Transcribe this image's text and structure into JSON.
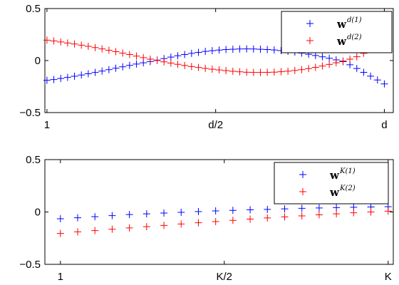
{
  "chart_data": [
    {
      "type": "scatter",
      "title": "",
      "xlabel": "",
      "ylabel": "",
      "marker": "+",
      "grid": false,
      "legend_position": "top-right",
      "x_range": [
        1,
        50
      ],
      "ylim": [
        -0.5,
        0.5
      ],
      "x_tick_values": [
        1,
        25.5,
        50
      ],
      "x_tick_labels": [
        "1",
        "d/2",
        "d"
      ],
      "y_tick_values": [
        0.5,
        0,
        -0.5
      ],
      "y_tick_labels": [
        "0.5",
        "0",
        "−0.5"
      ],
      "series": [
        {
          "name": "w",
          "name_superscript": "d(1)",
          "color": "#0000ff",
          "x": [
            1,
            2,
            3,
            4,
            5,
            6,
            7,
            8,
            9,
            10,
            11,
            12,
            13,
            14,
            15,
            16,
            17,
            18,
            19,
            20,
            21,
            22,
            23,
            24,
            25,
            26,
            27,
            28,
            29,
            30,
            31,
            32,
            33,
            34,
            35,
            36,
            37,
            38,
            39,
            40,
            41,
            42,
            43,
            44,
            45,
            46,
            47,
            48,
            49,
            50
          ],
          "y": [
            -0.19,
            -0.182,
            -0.172,
            -0.162,
            -0.151,
            -0.139,
            -0.127,
            -0.114,
            -0.101,
            -0.087,
            -0.074,
            -0.06,
            -0.046,
            -0.033,
            -0.021,
            -0.009,
            0.004,
            0.019,
            0.033,
            0.046,
            0.058,
            0.069,
            0.079,
            0.088,
            0.095,
            0.101,
            0.106,
            0.109,
            0.111,
            0.112,
            0.111,
            0.109,
            0.106,
            0.102,
            0.096,
            0.089,
            0.081,
            0.072,
            0.061,
            0.049,
            0.036,
            0.022,
            0.007,
            -0.01,
            -0.04,
            -0.076,
            -0.113,
            -0.15,
            -0.187,
            -0.224
          ]
        },
        {
          "name": "w",
          "name_superscript": "d(2)",
          "color": "#ff0000",
          "x": [
            1,
            2,
            3,
            4,
            5,
            6,
            7,
            8,
            9,
            10,
            11,
            12,
            13,
            14,
            15,
            16,
            17,
            18,
            19,
            20,
            21,
            22,
            23,
            24,
            25,
            26,
            27,
            28,
            29,
            30,
            31,
            32,
            33,
            34,
            35,
            36,
            37,
            38,
            39,
            40,
            41,
            42,
            43,
            44,
            45,
            46,
            47,
            48,
            49,
            50
          ],
          "y": [
            0.196,
            0.188,
            0.179,
            0.169,
            0.159,
            0.148,
            0.137,
            0.125,
            0.112,
            0.099,
            0.086,
            0.072,
            0.058,
            0.043,
            0.028,
            0.014,
            0.001,
            -0.012,
            -0.024,
            -0.036,
            -0.047,
            -0.057,
            -0.066,
            -0.075,
            -0.083,
            -0.09,
            -0.097,
            -0.103,
            -0.108,
            -0.112,
            -0.114,
            -0.114,
            -0.113,
            -0.111,
            -0.107,
            -0.102,
            -0.095,
            -0.087,
            -0.077,
            -0.065,
            -0.052,
            -0.037,
            -0.021,
            -0.004,
            0.014,
            0.037,
            0.07,
            0.108,
            0.16,
            0.2
          ]
        }
      ]
    },
    {
      "type": "scatter",
      "title": "",
      "xlabel": "",
      "ylabel": "",
      "marker": "+",
      "grid": false,
      "legend_position": "top-right",
      "x_range": [
        1,
        20
      ],
      "ylim": [
        -0.5,
        0.5
      ],
      "x_tick_values": [
        1,
        10.5,
        20
      ],
      "x_tick_labels": [
        "1",
        "K/2",
        "K"
      ],
      "y_tick_values": [
        0.5,
        0,
        -0.5
      ],
      "y_tick_labels": [
        "0.5",
        "0",
        "−0.5"
      ],
      "series": [
        {
          "name": "w",
          "name_superscript": "K(1)",
          "color": "#0000ff",
          "x": [
            1,
            2,
            3,
            4,
            5,
            6,
            7,
            8,
            9,
            10,
            11,
            12,
            13,
            14,
            15,
            16,
            17,
            18,
            19,
            20
          ],
          "y": [
            -0.065,
            -0.055,
            -0.045,
            -0.035,
            -0.025,
            -0.018,
            -0.01,
            -0.003,
            0.003,
            0.01,
            0.015,
            0.02,
            0.025,
            0.03,
            0.035,
            0.038,
            0.042,
            0.045,
            0.048,
            0.05
          ]
        },
        {
          "name": "w",
          "name_superscript": "K(2)",
          "color": "#ff0000",
          "x": [
            1,
            2,
            3,
            4,
            5,
            6,
            7,
            8,
            9,
            10,
            11,
            12,
            13,
            14,
            15,
            16,
            17,
            18,
            19,
            20
          ],
          "y": [
            -0.205,
            -0.19,
            -0.178,
            -0.165,
            -0.152,
            -0.14,
            -0.128,
            -0.115,
            -0.103,
            -0.092,
            -0.08,
            -0.068,
            -0.057,
            -0.047,
            -0.037,
            -0.027,
            -0.018,
            -0.008,
            0.0,
            0.008
          ]
        }
      ]
    }
  ]
}
